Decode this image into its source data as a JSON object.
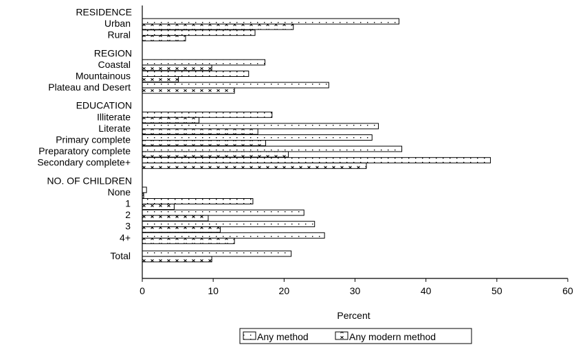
{
  "chart_data": {
    "type": "bar",
    "orientation": "horizontal",
    "xlabel": "Percent",
    "xlim": [
      0,
      60
    ],
    "xticks": [
      0,
      10,
      20,
      30,
      40,
      50,
      60
    ],
    "grid": false,
    "legend_position": "bottom-center",
    "series": [
      {
        "name": "Any method",
        "pattern": "dots"
      },
      {
        "name": "Any modern method",
        "pattern": "crosses"
      }
    ],
    "groups": [
      {
        "label": "RESIDENCE",
        "categories": [
          {
            "label": "Urban",
            "values": [
              36.2,
              21.3
            ]
          },
          {
            "label": "Rural",
            "values": [
              15.9,
              6.1
            ]
          }
        ]
      },
      {
        "label": "REGION",
        "categories": [
          {
            "label": "Coastal",
            "values": [
              17.3,
              9.8
            ]
          },
          {
            "label": "Mountainous",
            "values": [
              15.0,
              5.1
            ]
          },
          {
            "label": "Plateau and Desert",
            "values": [
              26.3,
              13.0
            ]
          }
        ]
      },
      {
        "label": "EDUCATION",
        "categories": [
          {
            "label": "Illiterate",
            "values": [
              18.3,
              8.0
            ]
          },
          {
            "label": "Literate",
            "values": [
              33.3,
              16.3
            ]
          },
          {
            "label": "Primary complete",
            "values": [
              32.4,
              17.4
            ]
          },
          {
            "label": "Preparatory complete",
            "values": [
              36.6,
              20.6
            ]
          },
          {
            "label": "Secondary complete+",
            "values": [
              49.1,
              31.6
            ]
          }
        ]
      },
      {
        "label": "NO. OF CHILDREN",
        "categories": [
          {
            "label": "None",
            "values": [
              0.6,
              0.2
            ]
          },
          {
            "label": "1",
            "values": [
              15.6,
              4.5
            ]
          },
          {
            "label": "2",
            "values": [
              22.8,
              9.3
            ]
          },
          {
            "label": "3",
            "values": [
              24.3,
              11.0
            ]
          },
          {
            "label": "4+",
            "values": [
              25.7,
              13.0
            ]
          }
        ]
      },
      {
        "label": "",
        "categories": [
          {
            "label": "Total",
            "values": [
              21.0,
              9.8
            ]
          }
        ]
      }
    ]
  }
}
